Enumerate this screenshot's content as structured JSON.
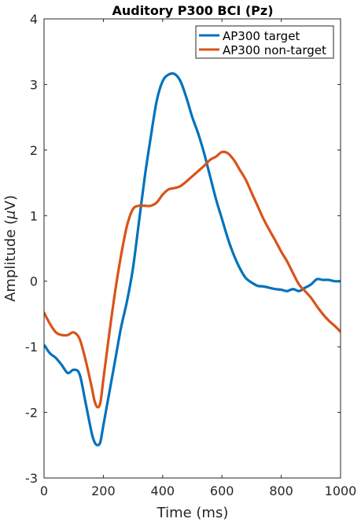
{
  "chart_data": {
    "type": "line",
    "title": "Auditory P300 BCI (Pz)",
    "xlabel": "Time (ms)",
    "ylabel_prefix": "Amplitude (",
    "ylabel_mu": "μ",
    "ylabel_suffix": "V)",
    "xlim": [
      0,
      1000
    ],
    "ylim": [
      -3,
      4
    ],
    "xticks": [
      0,
      200,
      400,
      600,
      800,
      1000
    ],
    "xtick_labels": [
      "0",
      "200",
      "400",
      "600",
      "800",
      "1000"
    ],
    "yticks": [
      -3,
      -2,
      -1,
      0,
      1,
      2,
      3,
      4
    ],
    "ytick_labels": [
      "-3",
      "-2",
      "-1",
      "0",
      "1",
      "2",
      "3",
      "4"
    ],
    "grid": false,
    "legend_position": "top-right",
    "series": [
      {
        "name": "AP300 target",
        "color": "#0072BD",
        "x": [
          0,
          20,
          40,
          60,
          80,
          100,
          120,
          140,
          160,
          170,
          180,
          190,
          200,
          220,
          240,
          260,
          280,
          300,
          320,
          340,
          360,
          380,
          400,
          420,
          440,
          460,
          480,
          500,
          520,
          540,
          560,
          580,
          600,
          620,
          640,
          660,
          680,
          700,
          720,
          740,
          760,
          780,
          800,
          820,
          840,
          860,
          880,
          900,
          920,
          940,
          960,
          980,
          1000
        ],
        "y": [
          -0.97,
          -1.1,
          -1.17,
          -1.28,
          -1.4,
          -1.35,
          -1.42,
          -1.85,
          -2.3,
          -2.45,
          -2.5,
          -2.45,
          -2.2,
          -1.7,
          -1.2,
          -0.7,
          -0.3,
          0.2,
          0.9,
          1.6,
          2.2,
          2.75,
          3.05,
          3.15,
          3.16,
          3.05,
          2.8,
          2.5,
          2.25,
          1.95,
          1.6,
          1.25,
          0.95,
          0.65,
          0.4,
          0.2,
          0.05,
          -0.02,
          -0.07,
          -0.08,
          -0.1,
          -0.12,
          -0.13,
          -0.15,
          -0.12,
          -0.15,
          -0.1,
          -0.05,
          0.03,
          0.02,
          0.02,
          0.0,
          0.0
        ]
      },
      {
        "name": "AP300 non-target",
        "color": "#D95319",
        "x": [
          0,
          20,
          40,
          60,
          80,
          100,
          120,
          140,
          160,
          170,
          180,
          190,
          200,
          220,
          240,
          260,
          280,
          300,
          320,
          340,
          360,
          380,
          400,
          420,
          440,
          460,
          480,
          500,
          520,
          540,
          560,
          580,
          600,
          620,
          640,
          660,
          680,
          700,
          720,
          740,
          760,
          780,
          800,
          820,
          840,
          860,
          880,
          900,
          920,
          940,
          960,
          980,
          1000
        ],
        "y": [
          -0.48,
          -0.65,
          -0.78,
          -0.82,
          -0.82,
          -0.78,
          -0.88,
          -1.2,
          -1.6,
          -1.82,
          -1.92,
          -1.85,
          -1.5,
          -0.8,
          -0.15,
          0.4,
          0.85,
          1.1,
          1.15,
          1.15,
          1.15,
          1.2,
          1.32,
          1.4,
          1.42,
          1.45,
          1.52,
          1.6,
          1.68,
          1.76,
          1.85,
          1.9,
          1.97,
          1.95,
          1.85,
          1.7,
          1.55,
          1.35,
          1.15,
          0.95,
          0.78,
          0.62,
          0.45,
          0.3,
          0.12,
          -0.05,
          -0.15,
          -0.25,
          -0.38,
          -0.5,
          -0.6,
          -0.68,
          -0.77
        ]
      }
    ]
  }
}
